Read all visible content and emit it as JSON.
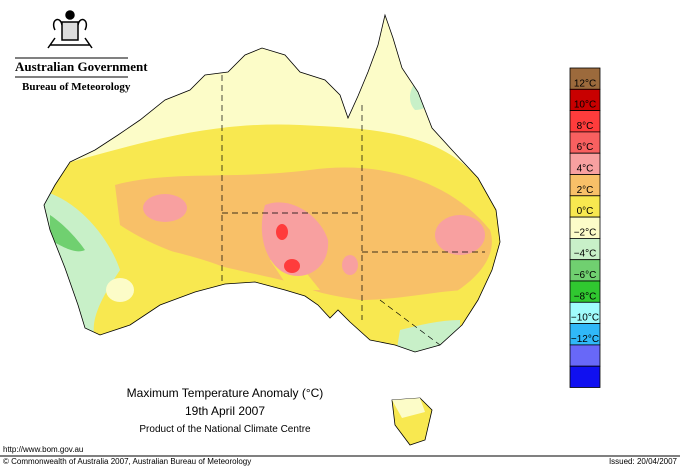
{
  "header": {
    "government": "Australian Government",
    "bureau": "Bureau of Meteorology"
  },
  "legend": {
    "colors": [
      "#9c6a3c",
      "#c80000",
      "#ff3c3c",
      "#f86060",
      "#f8a0a0",
      "#f8c068",
      "#f8e850",
      "#fcfcc8",
      "#c8f0c8",
      "#70d070",
      "#30c830",
      "#a0fcfc",
      "#30b8f8",
      "#6868f8",
      "#1010f0"
    ],
    "labels": [
      "12°C",
      "10°C",
      "8°C",
      "6°C",
      "4°C",
      "2°C",
      "0°C",
      "−2°C",
      "−4°C",
      "−6°C",
      "−8°C",
      "−10°C",
      "−12°C"
    ]
  },
  "caption": {
    "title": "Maximum Temperature Anomaly (°C)",
    "date": "19th April 2007",
    "product": "Product of the National Climate Centre"
  },
  "footer": {
    "url": "http://www.bom.gov.au",
    "copyright": "© Commonwealth of Australia 2007, Australian Bureau of Meteorology",
    "issued": "Issued: 20/04/2007"
  }
}
